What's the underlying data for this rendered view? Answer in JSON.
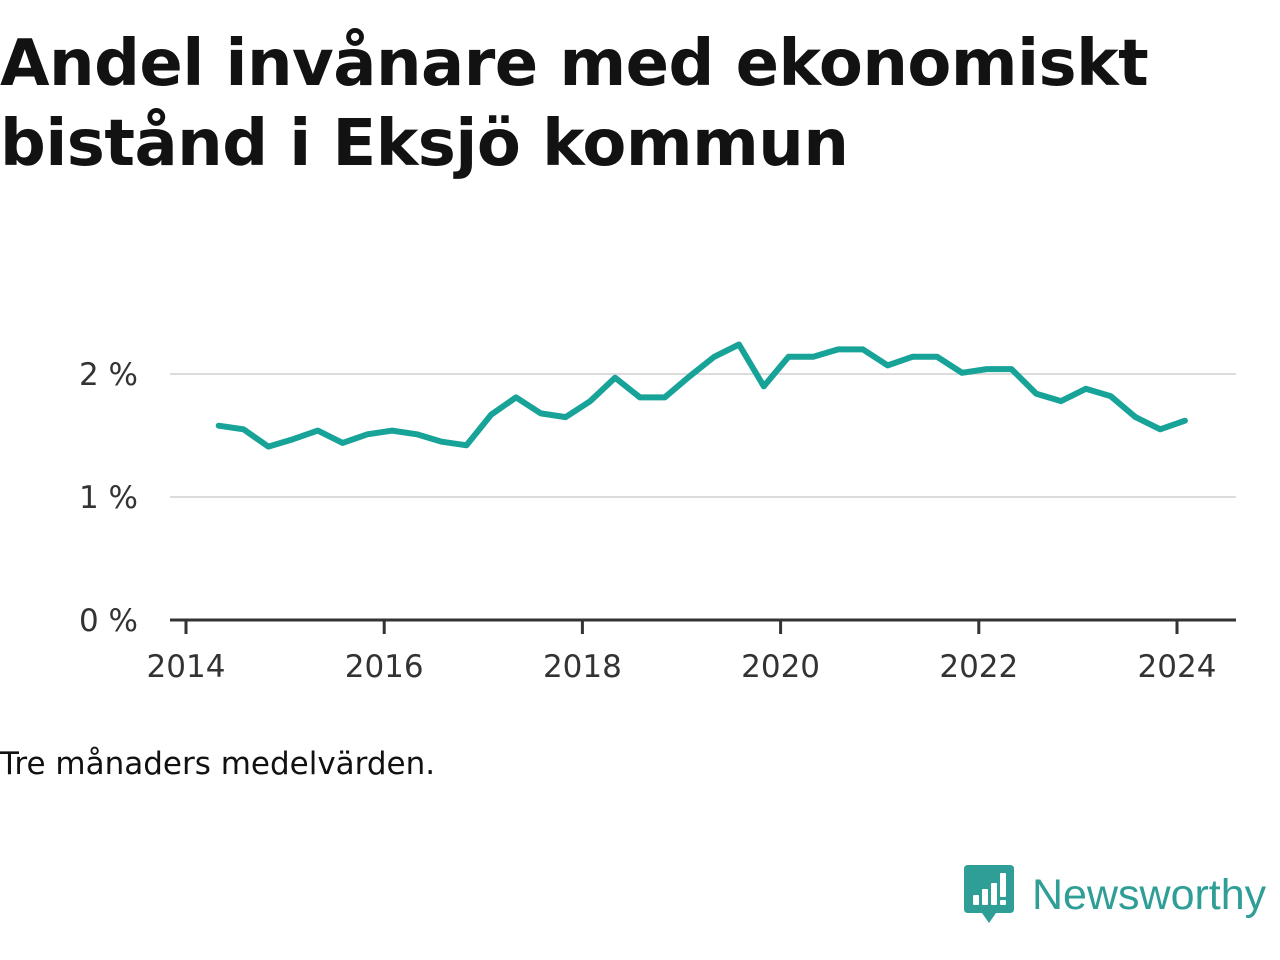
{
  "title": "Andel invånare med ekonomiskt bistånd i Eksjö kommun",
  "caption": "Tre månaders medelvärden.",
  "brand": {
    "name": "Newsworthy",
    "icon": "newsworthy-logo-icon",
    "color": "#2f9e96"
  },
  "chart_data": {
    "type": "line",
    "title": "Andel invånare med ekonomiskt bistånd i Eksjö kommun",
    "xlabel": "",
    "ylabel": "",
    "xlim": [
      2014,
      2024.6
    ],
    "ylim": [
      0,
      2.5
    ],
    "grid": true,
    "line_color": "#17a398",
    "x_ticks": [
      {
        "value": 2014,
        "label": "2014"
      },
      {
        "value": 2016,
        "label": "2016"
      },
      {
        "value": 2018,
        "label": "2018"
      },
      {
        "value": 2020,
        "label": "2020"
      },
      {
        "value": 2022,
        "label": "2022"
      },
      {
        "value": 2024,
        "label": "2024"
      }
    ],
    "y_ticks": [
      {
        "value": 0,
        "label": "0 %"
      },
      {
        "value": 1,
        "label": "1 %"
      },
      {
        "value": 2,
        "label": "2 %"
      }
    ],
    "series": [
      {
        "x": [
          2014.33,
          2014.58,
          2014.83,
          2015.08,
          2015.33,
          2015.58,
          2015.83,
          2016.08,
          2016.33,
          2016.58,
          2016.83,
          2017.08,
          2017.33,
          2017.58,
          2017.83,
          2018.08,
          2018.33,
          2018.58,
          2018.83,
          2019.08,
          2019.33,
          2019.58,
          2019.83,
          2020.08,
          2020.33,
          2020.58,
          2020.83,
          2021.08,
          2021.33,
          2021.58,
          2021.83,
          2022.08,
          2022.33,
          2022.58,
          2022.83,
          2023.08,
          2023.33,
          2023.58,
          2023.83,
          2024.08
        ],
        "values": [
          1.58,
          1.55,
          1.41,
          1.47,
          1.54,
          1.44,
          1.51,
          1.54,
          1.51,
          1.45,
          1.42,
          1.67,
          1.81,
          1.68,
          1.65,
          1.78,
          1.97,
          1.81,
          1.81,
          1.98,
          2.14,
          2.24,
          1.9,
          2.14,
          2.14,
          2.2,
          2.2,
          2.07,
          2.14,
          2.14,
          2.01,
          2.04,
          2.04,
          1.84,
          1.78,
          1.88,
          1.82,
          1.65,
          1.55,
          1.62
        ]
      }
    ]
  }
}
